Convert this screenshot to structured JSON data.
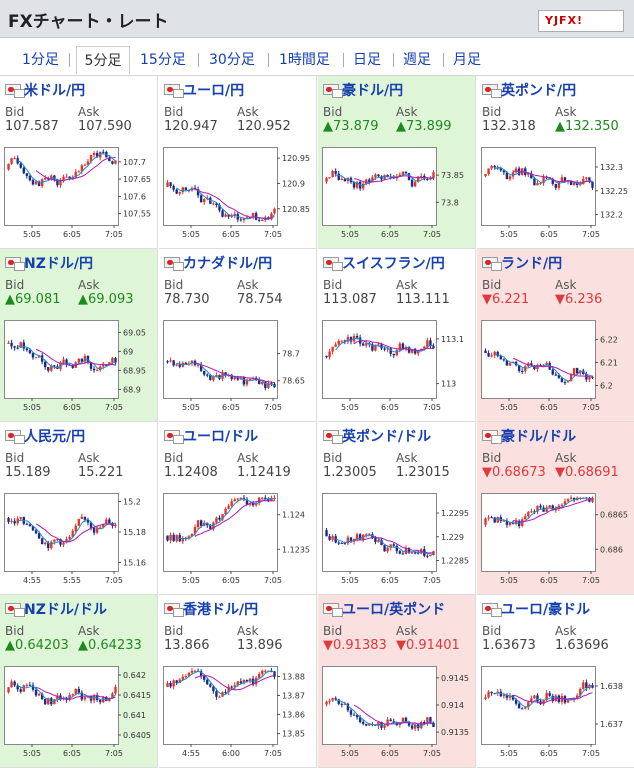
{
  "header": {
    "title": "FXチャート・レート",
    "logo": "YJFX!"
  },
  "colors": {
    "up": "#1e8a1e",
    "down": "#e0383c",
    "candle_up": "#e8332a",
    "candle_down": "#1a2a8a",
    "ma_short": "#1a8fc2",
    "ma_long": "#b21ab2"
  },
  "tabs": [
    {
      "label": "1分足",
      "active": false
    },
    {
      "label": "5分足",
      "active": true
    },
    {
      "label": "15分足",
      "active": false
    },
    {
      "label": "30分足",
      "active": false
    },
    {
      "label": "1時間足",
      "active": false
    },
    {
      "label": "日足",
      "active": false
    },
    {
      "label": "週足",
      "active": false
    },
    {
      "label": "月足",
      "active": false
    }
  ],
  "labels": {
    "bid": "Bid",
    "ask": "Ask"
  },
  "pairs": [
    {
      "name": "米ドル/円",
      "trend": "none",
      "bid": "107.587",
      "ask": "107.590",
      "x_ticks": [
        "5:05",
        "6:05",
        "7:05"
      ],
      "y_ticks": [
        "107.7",
        "107.65",
        "107.6",
        "107.55"
      ],
      "y_range": [
        107.52,
        107.74
      ]
    },
    {
      "name": "ユーロ/円",
      "trend": "none",
      "bid": "120.947",
      "ask": "120.952",
      "x_ticks": [
        "5:05",
        "6:05",
        "7:05"
      ],
      "y_ticks": [
        "120.95",
        "120.9",
        "120.85"
      ],
      "y_range": [
        120.82,
        120.97
      ]
    },
    {
      "name": "豪ドル/円",
      "trend": "up",
      "bid": "▲73.879",
      "ask": "▲73.899",
      "x_ticks": [
        "5:05",
        "6:05",
        "7:05"
      ],
      "y_ticks": [
        "73.85",
        "73.8"
      ],
      "y_range": [
        73.76,
        73.9
      ]
    },
    {
      "name": "英ポンド/円",
      "trend": "none",
      "bid": "132.318",
      "ask": "▲132.350",
      "x_ticks": [
        "5:05",
        "6:05",
        "7:05"
      ],
      "y_ticks": [
        "132.3",
        "132.25",
        "132.2"
      ],
      "y_range": [
        132.18,
        132.34
      ]
    },
    {
      "name": "NZドル/円",
      "trend": "up",
      "bid": "▲69.081",
      "ask": "▲69.093",
      "x_ticks": [
        "5:05",
        "6:05",
        "7:05"
      ],
      "y_ticks": [
        "69.05",
        "69",
        "68.95",
        "68.9"
      ],
      "y_range": [
        68.88,
        69.08
      ]
    },
    {
      "name": "カナダドル/円",
      "trend": "none",
      "bid": "78.730",
      "ask": "78.754",
      "x_ticks": [
        "5:05",
        "6:05",
        "7:05"
      ],
      "y_ticks": [
        "78.7",
        "78.65"
      ],
      "y_range": [
        78.62,
        78.76
      ]
    },
    {
      "name": "スイスフラン/円",
      "trend": "none",
      "bid": "113.087",
      "ask": "113.111",
      "x_ticks": [
        "5:05",
        "6:05",
        "7:05"
      ],
      "y_ticks": [
        "113.1",
        "113"
      ],
      "y_range": [
        112.97,
        113.14
      ]
    },
    {
      "name": "ランド/円",
      "trend": "down",
      "bid": "▼6.221",
      "ask": "▼6.236",
      "x_ticks": [
        "5:05",
        "6:05",
        "7:05"
      ],
      "y_ticks": [
        "6.22",
        "6.21",
        "6.2"
      ],
      "y_range": [
        6.195,
        6.228
      ]
    },
    {
      "name": "人民元/円",
      "trend": "none",
      "bid": "15.189",
      "ask": "15.221",
      "x_ticks": [
        "4:55",
        "5:55",
        "7:05"
      ],
      "y_ticks": [
        "15.2",
        "15.18",
        "15.16"
      ],
      "y_range": [
        15.155,
        15.205
      ]
    },
    {
      "name": "ユーロ/ドル",
      "trend": "none",
      "bid": "1.12408",
      "ask": "1.12419",
      "x_ticks": [
        "5:05",
        "6:05",
        "7:05"
      ],
      "y_ticks": [
        "1.124",
        "1.1235"
      ],
      "y_range": [
        1.1232,
        1.1243
      ]
    },
    {
      "name": "英ポンド/ドル",
      "trend": "none",
      "bid": "1.23005",
      "ask": "1.23015",
      "x_ticks": [
        "5:05",
        "6:05",
        "7:05"
      ],
      "y_ticks": [
        "1.2295",
        "1.229",
        "1.2285"
      ],
      "y_range": [
        1.2283,
        1.2299
      ]
    },
    {
      "name": "豪ドル/ドル",
      "trend": "down",
      "bid": "▼0.68673",
      "ask": "▼0.68691",
      "x_ticks": [
        "5:05",
        "6:05",
        "7:05"
      ],
      "y_ticks": [
        "0.6865",
        "0.686"
      ],
      "y_range": [
        0.6857,
        0.6868
      ]
    },
    {
      "name": "NZドル/ドル",
      "trend": "up",
      "bid": "▲0.64203",
      "ask": "▲0.64233",
      "x_ticks": [
        "5:05",
        "6:05",
        "7:05"
      ],
      "y_ticks": [
        "0.642",
        "0.6415",
        "0.641",
        "0.6405"
      ],
      "y_range": [
        0.6403,
        0.6422
      ]
    },
    {
      "name": "香港ドル/円",
      "trend": "none",
      "bid": "13.866",
      "ask": "13.896",
      "x_ticks": [
        "4:55",
        "6:00",
        "7:05"
      ],
      "y_ticks": [
        "13.88",
        "13.87",
        "13.86",
        "13.85"
      ],
      "y_range": [
        13.845,
        13.885
      ]
    },
    {
      "name": "ユーロ/英ポンド",
      "trend": "down",
      "bid": "▼0.91383",
      "ask": "▼0.91401",
      "x_ticks": [
        "5:05",
        "6:05",
        "7:05"
      ],
      "y_ticks": [
        "0.9145",
        "0.914",
        "0.9135"
      ],
      "y_range": [
        0.9133,
        0.9147
      ]
    },
    {
      "name": "ユーロ/豪ドル",
      "trend": "none",
      "bid": "1.63673",
      "ask": "1.63696",
      "x_ticks": [
        "5:05",
        "6:05",
        "7:05"
      ],
      "y_ticks": [
        "1.638",
        "1.637"
      ],
      "y_range": [
        1.6365,
        1.6385
      ]
    }
  ]
}
